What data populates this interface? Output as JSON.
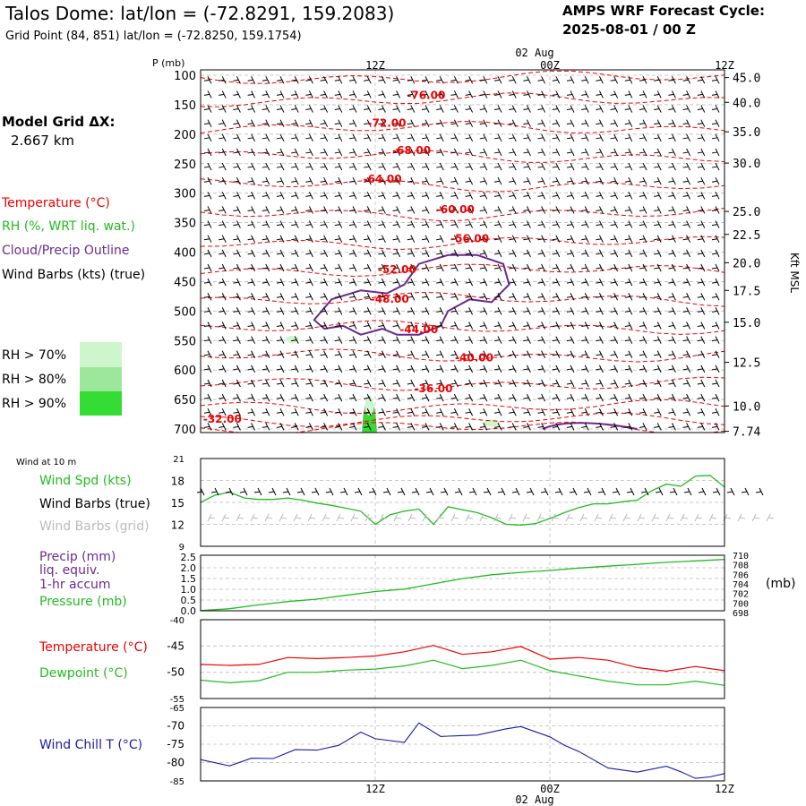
{
  "header": {
    "title": "Talos Dome:  lat/lon = (-72.8291, 159.2083)",
    "subtitle": "Grid Point (84, 851) lat/lon = (-72.8250, 159.1754)",
    "cycle_label": "AMPS WRF Forecast Cycle:",
    "cycle_value": "2025-08-01 / 00  Z"
  },
  "model": {
    "label": "Model Grid ΔX:",
    "value": "2.667 km"
  },
  "time_axis": {
    "labels": [
      "12Z",
      "00Z",
      "12Z"
    ],
    "date_label": "02 Aug",
    "hours": [
      12,
      24,
      36
    ],
    "range_hours": [
      0,
      36
    ]
  },
  "colors": {
    "temperature": "#ee0000",
    "rh": "#22bb22",
    "cloud": "#6a2a8f",
    "barbs": "#000000",
    "barbs_grid": "#bbbbbb",
    "windchill": "#1a1aa6",
    "rh70": "#cdf6cd",
    "rh80": "#9de79d",
    "rh90": "#33dd33"
  },
  "legend_top": {
    "temperature": "Temperature (°C)",
    "rh": "RH (%, WRT liq. wat.)",
    "cloud": "Cloud/Precip Outline",
    "barbs": "Wind Barbs (kts) (true)",
    "rh70": "RH > 70%",
    "rh80": "RH > 80%",
    "rh90": "RH > 90%"
  },
  "chart_data": [
    {
      "type": "line",
      "panel": "vertical-profile",
      "ylabel": "P (mb)",
      "ylabel_right": "Kft MSL",
      "pressure_ticks": [
        "100",
        "150",
        "200",
        "250",
        "300",
        "350",
        "400",
        "450",
        "500",
        "550",
        "600",
        "650",
        "700"
      ],
      "height_ticks": [
        {
          "label": "45.0",
          "p": 104
        },
        {
          "label": "40.0",
          "p": 146
        },
        {
          "label": "35.0",
          "p": 196
        },
        {
          "label": "30.0",
          "p": 249
        },
        {
          "label": "25.0",
          "p": 331
        },
        {
          "label": "22.5",
          "p": 370
        },
        {
          "label": "20.0",
          "p": 418
        },
        {
          "label": "17.5",
          "p": 465
        },
        {
          "label": "15.0",
          "p": 519
        },
        {
          "label": "12.5",
          "p": 587
        },
        {
          "label": "10.0",
          "p": 661
        },
        {
          "label": "7.74",
          "p": 704
        }
      ],
      "isotherm_labels": [
        {
          "text": "-76.00",
          "h": 15.5,
          "p": 133
        },
        {
          "text": "-72.00",
          "h": 12.8,
          "p": 180
        },
        {
          "text": "-68.00",
          "h": 14.5,
          "p": 226
        },
        {
          "text": "-64.00",
          "h": 12.5,
          "p": 275
        },
        {
          "text": "-60.00",
          "h": 17.5,
          "p": 326
        },
        {
          "text": "-56.00",
          "h": 18.5,
          "p": 376
        },
        {
          "text": "-52.00",
          "h": 13.5,
          "p": 428
        },
        {
          "text": "-48.00",
          "h": 13.0,
          "p": 478
        },
        {
          "text": "-44.00",
          "h": 15.0,
          "p": 530
        },
        {
          "text": "-40.00",
          "h": 18.8,
          "p": 578
        },
        {
          "text": "-36.00",
          "h": 16.0,
          "p": 630
        },
        {
          "text": "-32.00",
          "h": 1.5,
          "p": 682
        }
      ],
      "isotherm_levels": [
        104,
        142,
        190,
        238,
        286,
        335,
        384,
        431,
        480,
        528,
        576,
        624,
        662,
        684,
        698
      ],
      "cloud_outline": [
        [
          7.8,
          515
        ],
        [
          9.0,
          480
        ],
        [
          11.0,
          465
        ],
        [
          12.8,
          470
        ],
        [
          14.0,
          455
        ],
        [
          15.0,
          420
        ],
        [
          17.0,
          405
        ],
        [
          19.0,
          405
        ],
        [
          20.8,
          420
        ],
        [
          21.2,
          455
        ],
        [
          20.0,
          485
        ],
        [
          18.5,
          480
        ],
        [
          17.0,
          500
        ],
        [
          16.5,
          525
        ],
        [
          15.0,
          540
        ],
        [
          13.5,
          540
        ],
        [
          12.5,
          530
        ],
        [
          11.0,
          540
        ],
        [
          9.8,
          525
        ],
        [
          8.5,
          530
        ],
        [
          7.8,
          515
        ]
      ],
      "rh_patches": [
        {
          "level": "rh90",
          "h": 11.6,
          "p": 655
        },
        {
          "level": "rh70",
          "h": 6.3,
          "p": 548
        }
      ]
    },
    {
      "type": "line",
      "panel": "wind-10m",
      "title": "Wind at 10 m",
      "y_ticks": [
        "21",
        "18",
        "15",
        "12",
        "9"
      ],
      "ylim": [
        9,
        21
      ],
      "x": [
        0,
        1,
        2,
        3,
        4,
        5,
        6,
        7,
        8,
        9,
        10,
        11,
        12,
        13,
        14,
        15,
        16,
        17,
        18,
        19,
        20,
        21,
        22,
        23,
        24,
        25,
        26,
        27,
        28,
        29,
        30,
        31,
        32,
        33,
        34,
        35,
        36
      ],
      "wind_speed": [
        15.0,
        16.0,
        16.4,
        15.6,
        15.4,
        15.4,
        15.6,
        15.3,
        14.9,
        14.6,
        14.2,
        13.8,
        12.0,
        13.3,
        13.8,
        14.1,
        12.0,
        14.4,
        14.0,
        13.6,
        12.9,
        12.0,
        11.9,
        12.1,
        12.8,
        13.6,
        14.3,
        14.8,
        14.8,
        15.1,
        15.3,
        16.6,
        17.5,
        17.2,
        18.6,
        18.7,
        17.1
      ],
      "series_labels": {
        "speed": "Wind Spd (kts)",
        "barbs_true": "Wind Barbs (true)",
        "barbs_grid": "Wind Barbs (grid)"
      }
    },
    {
      "type": "line",
      "panel": "precip-pressure",
      "labels": [
        "Precip (mm)",
        "liq. equiv.",
        "1-hr accum",
        "Pressure (mb)"
      ],
      "left_ticks": [
        "2.5",
        "2.0",
        "1.5",
        "1.0",
        "0.5",
        "0.0"
      ],
      "right_ticks": [
        "710",
        "708",
        "706",
        "704",
        "702",
        "700",
        "698"
      ],
      "right_unit": "(mb)",
      "pressure_ylim": [
        698,
        710
      ],
      "x": [
        0,
        2,
        4,
        6,
        8,
        10,
        12,
        14,
        16,
        18,
        20,
        22,
        24,
        26,
        28,
        30,
        32,
        34,
        36
      ],
      "pressure": [
        698.6,
        699.0,
        699.8,
        700.5,
        701.0,
        701.8,
        702.6,
        703.1,
        704.2,
        705.3,
        706.1,
        706.6,
        707.0,
        707.5,
        707.9,
        708.3,
        708.7,
        709.0,
        709.3
      ],
      "precip": [
        0,
        0,
        0,
        0,
        0,
        0,
        0,
        0,
        0,
        0,
        0,
        0,
        0,
        0,
        0,
        0,
        0,
        0,
        0
      ]
    },
    {
      "type": "line",
      "panel": "temperature",
      "y_ticks": [
        "-40",
        "-45",
        "-50",
        "-55"
      ],
      "ylim": [
        -55,
        -40
      ],
      "x": [
        0,
        2,
        4,
        6,
        8,
        10,
        12,
        14,
        16,
        18,
        20,
        22,
        24,
        26,
        28,
        30,
        32,
        34,
        36
      ],
      "series": [
        {
          "name": "Temperature (°C)",
          "color": "temperature",
          "values": [
            -48.5,
            -48.7,
            -48.5,
            -47.2,
            -47.4,
            -47.2,
            -46.9,
            -46.1,
            -44.9,
            -46.6,
            -46.1,
            -45.1,
            -47.5,
            -47.2,
            -47.7,
            -49.1,
            -49.8,
            -48.9,
            -49.7
          ]
        },
        {
          "name": "Dewpoint (°C)",
          "color": "rh",
          "values": [
            -51.5,
            -52.0,
            -51.6,
            -50.0,
            -50.0,
            -49.6,
            -49.4,
            -48.8,
            -47.7,
            -49.3,
            -48.7,
            -47.7,
            -49.7,
            -50.7,
            -51.7,
            -52.4,
            -52.4,
            -51.7,
            -52.5
          ]
        }
      ]
    },
    {
      "type": "line",
      "panel": "wind-chill",
      "y_ticks": [
        "-65",
        "-70",
        "-75",
        "-80",
        "-85"
      ],
      "ylim": [
        -85,
        -65
      ],
      "series": [
        {
          "name": "Wind Chill T (°C)",
          "color": "windchill",
          "x": [
            0,
            2,
            3.5,
            5,
            6.5,
            8,
            9.5,
            11,
            12,
            14,
            15,
            16.5,
            17,
            19,
            21,
            22,
            24,
            25,
            26,
            28,
            30,
            32,
            33,
            34,
            35,
            36
          ],
          "values": [
            -79.2,
            -80.9,
            -78.8,
            -78.9,
            -76.5,
            -76.6,
            -75.3,
            -71.7,
            -73.5,
            -74.5,
            -69.2,
            -72.9,
            -72.8,
            -72.5,
            -70.8,
            -70.2,
            -73.0,
            -75.3,
            -77.0,
            -81.5,
            -82.6,
            -81.0,
            -82.5,
            -84.3,
            -83.9,
            -83.0
          ]
        }
      ]
    }
  ],
  "bottom_axis": {
    "labels": [
      "12Z",
      "00Z",
      "12Z"
    ],
    "date_label": "02 Aug"
  }
}
